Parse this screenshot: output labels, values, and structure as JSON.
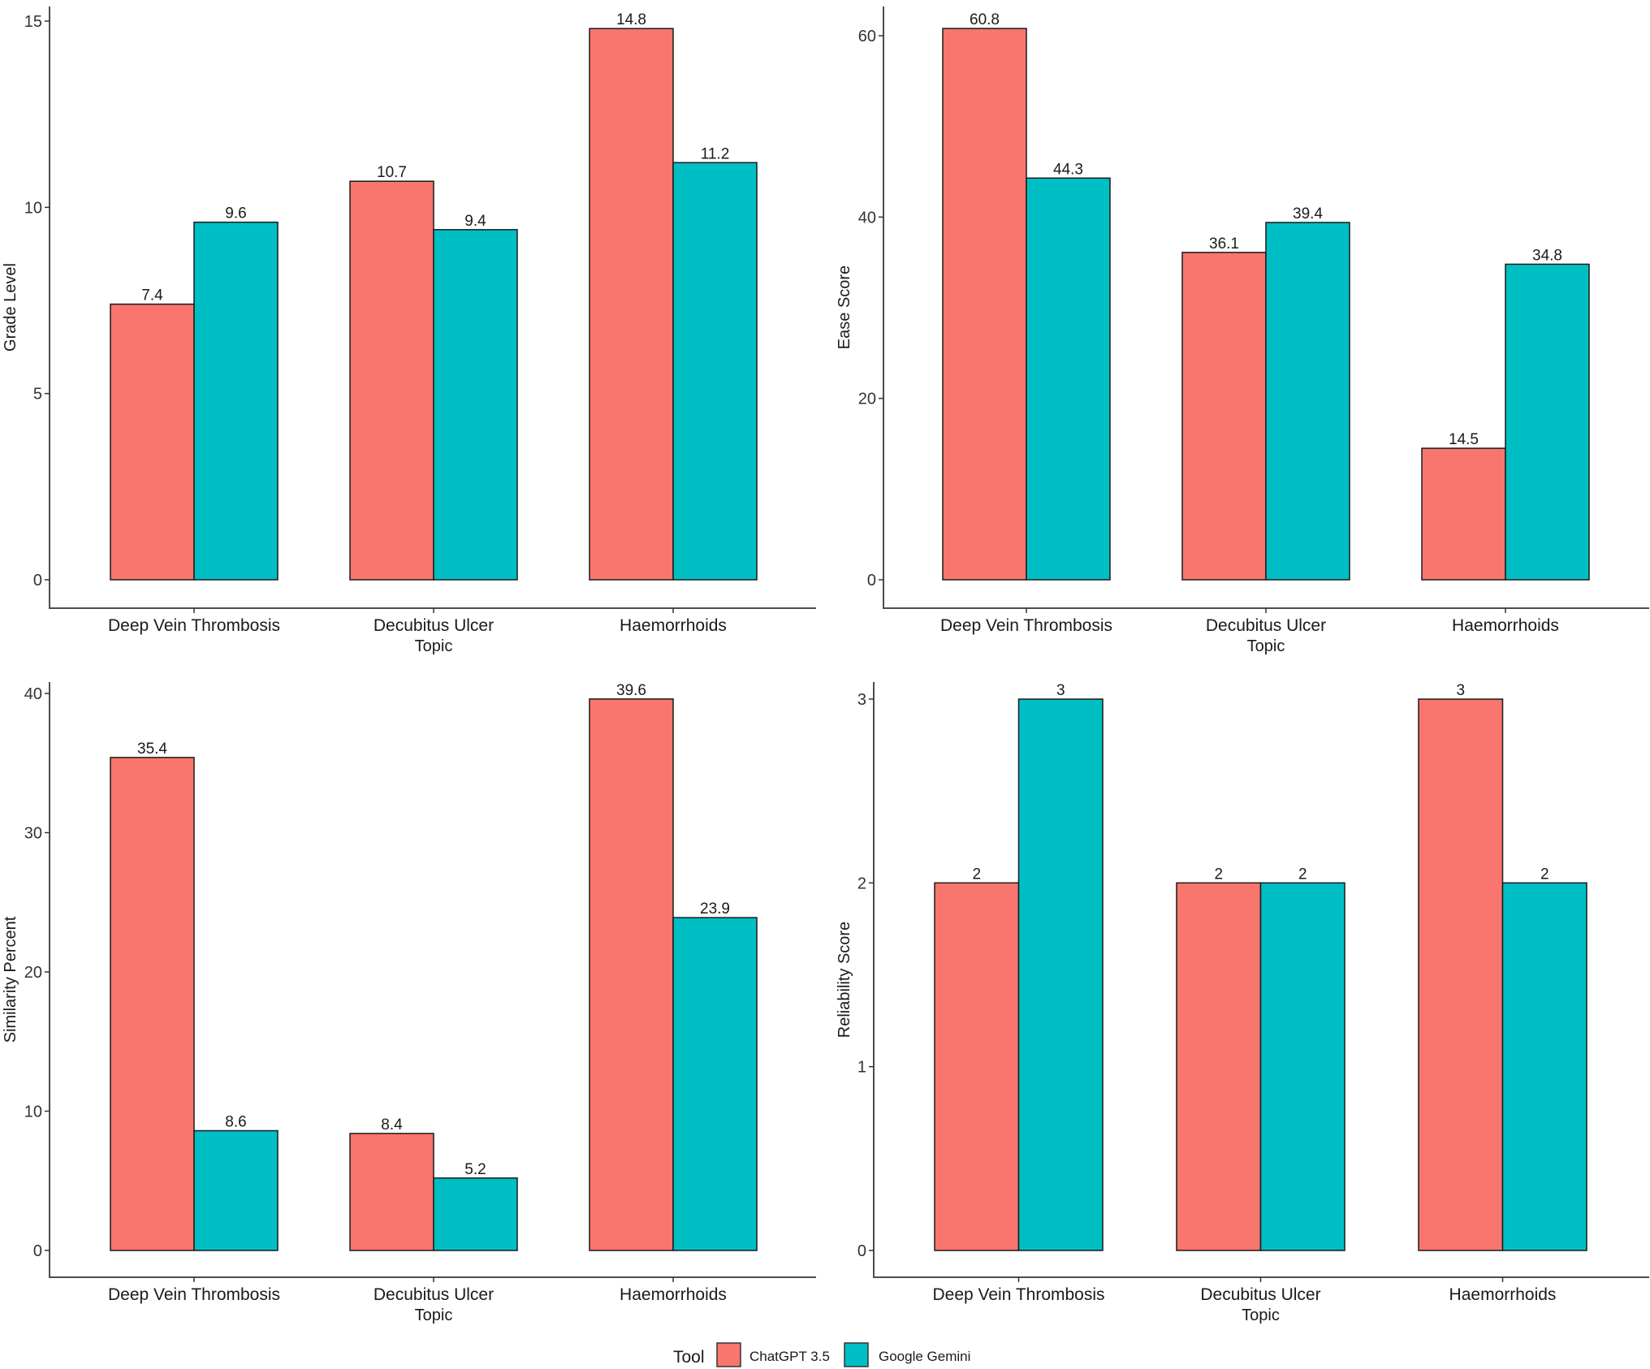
{
  "legend": {
    "title": "Tool",
    "items": [
      {
        "label": "ChatGPT 3.5",
        "color": "#F8766D"
      },
      {
        "label": "Google Gemini",
        "color": "#00BFC4"
      }
    ]
  },
  "chart_data": [
    {
      "type": "bar",
      "panel": "top-left",
      "title": "",
      "xlabel": "Topic",
      "ylabel": "Grade Level",
      "categories": [
        "Deep Vein Thrombosis",
        "Decubitus Ulcer",
        "Haemorrhoids"
      ],
      "series": [
        {
          "name": "ChatGPT 3.5",
          "values": [
            7.4,
            10.7,
            14.8
          ],
          "labels": [
            "7.4",
            "10.7",
            "14.8"
          ]
        },
        {
          "name": "Google Gemini",
          "values": [
            9.6,
            9.4,
            11.2
          ],
          "labels": [
            "9.6",
            "9.4",
            "11.2"
          ]
        }
      ],
      "yticks": [
        0,
        5,
        10,
        15
      ],
      "ylim": [
        -1.9,
        15.6
      ],
      "grid": false,
      "legend": "bottom"
    },
    {
      "type": "bar",
      "panel": "top-right",
      "title": "",
      "xlabel": "Topic",
      "ylabel": "Ease Score",
      "categories": [
        "Deep Vein Thrombosis",
        "Decubitus Ulcer",
        "Haemorrhoids"
      ],
      "series": [
        {
          "name": "ChatGPT 3.5",
          "values": [
            60.8,
            36.1,
            14.5
          ],
          "labels": [
            "60.8",
            "36.1",
            "14.5"
          ]
        },
        {
          "name": "Google Gemini",
          "values": [
            44.3,
            39.4,
            34.8
          ],
          "labels": [
            "44.3",
            "39.4",
            "34.8"
          ]
        }
      ],
      "yticks": [
        0,
        20,
        40,
        60
      ],
      "ylim": [
        -3.1,
        63.8
      ],
      "grid": false,
      "legend": "bottom"
    },
    {
      "type": "bar",
      "panel": "bottom-left",
      "title": "",
      "xlabel": "Topic",
      "ylabel": "Similarity Percent",
      "categories": [
        "Deep Vein Thrombosis",
        "Decubitus Ulcer",
        "Haemorrhoids"
      ],
      "series": [
        {
          "name": "ChatGPT 3.5",
          "values": [
            35.4,
            8.4,
            39.6
          ],
          "labels": [
            "35.4",
            "8.4",
            "39.6"
          ]
        },
        {
          "name": "Google Gemini",
          "values": [
            8.6,
            5.2,
            23.9
          ],
          "labels": [
            "8.6",
            "5.2",
            "23.9"
          ]
        }
      ],
      "yticks": [
        0,
        10,
        20,
        30,
        40
      ],
      "ylim": [
        -1.9,
        41.1
      ],
      "grid": false,
      "legend": "bottom"
    },
    {
      "type": "bar",
      "panel": "bottom-right",
      "title": "",
      "xlabel": "Topic",
      "ylabel": "Reliability Score",
      "categories": [
        "Deep Vein Thrombosis",
        "Decubitus Ulcer",
        "Haemorrhoids"
      ],
      "series": [
        {
          "name": "ChatGPT 3.5",
          "values": [
            2,
            2,
            3
          ],
          "labels": [
            "2",
            "2",
            "3"
          ]
        },
        {
          "name": "Google Gemini",
          "values": [
            3,
            2,
            2
          ],
          "labels": [
            "3",
            "2",
            "2"
          ]
        }
      ],
      "yticks": [
        0,
        1,
        2,
        3
      ],
      "ylim": [
        -0.15,
        3.1
      ],
      "grid": false,
      "legend": "bottom"
    }
  ]
}
